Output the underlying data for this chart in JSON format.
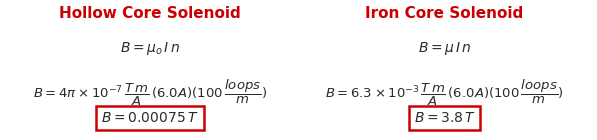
{
  "bg_color": "#ffffff",
  "title_color": "#cc0000",
  "text_color": "#2b2b2b",
  "box_color": "#cc0000",
  "left_title": "Hollow Core Solenoid",
  "right_title": "Iron Core Solenoid",
  "left_eq1": "$B = \\mu_o\\, I\\, n$",
  "right_eq1": "$B = \\mu\\, I\\, n$",
  "left_eq2": "$B = 4\\pi \\times 10^{-7}\\,\\dfrac{T\\,m}{A}\\,(6.0A)(100\\,\\dfrac{loops}{m})$",
  "right_eq2": "$B = 6.3 \\times 10^{-3}\\,\\dfrac{T\\,m}{A}\\,(6.0A)(100\\,\\dfrac{loops}{m})$",
  "left_result": "$B = 0.00075\\,T$",
  "right_result": "$B = 3.8\\,T$",
  "figsize": [
    5.97,
    1.4
  ],
  "dpi": 100
}
